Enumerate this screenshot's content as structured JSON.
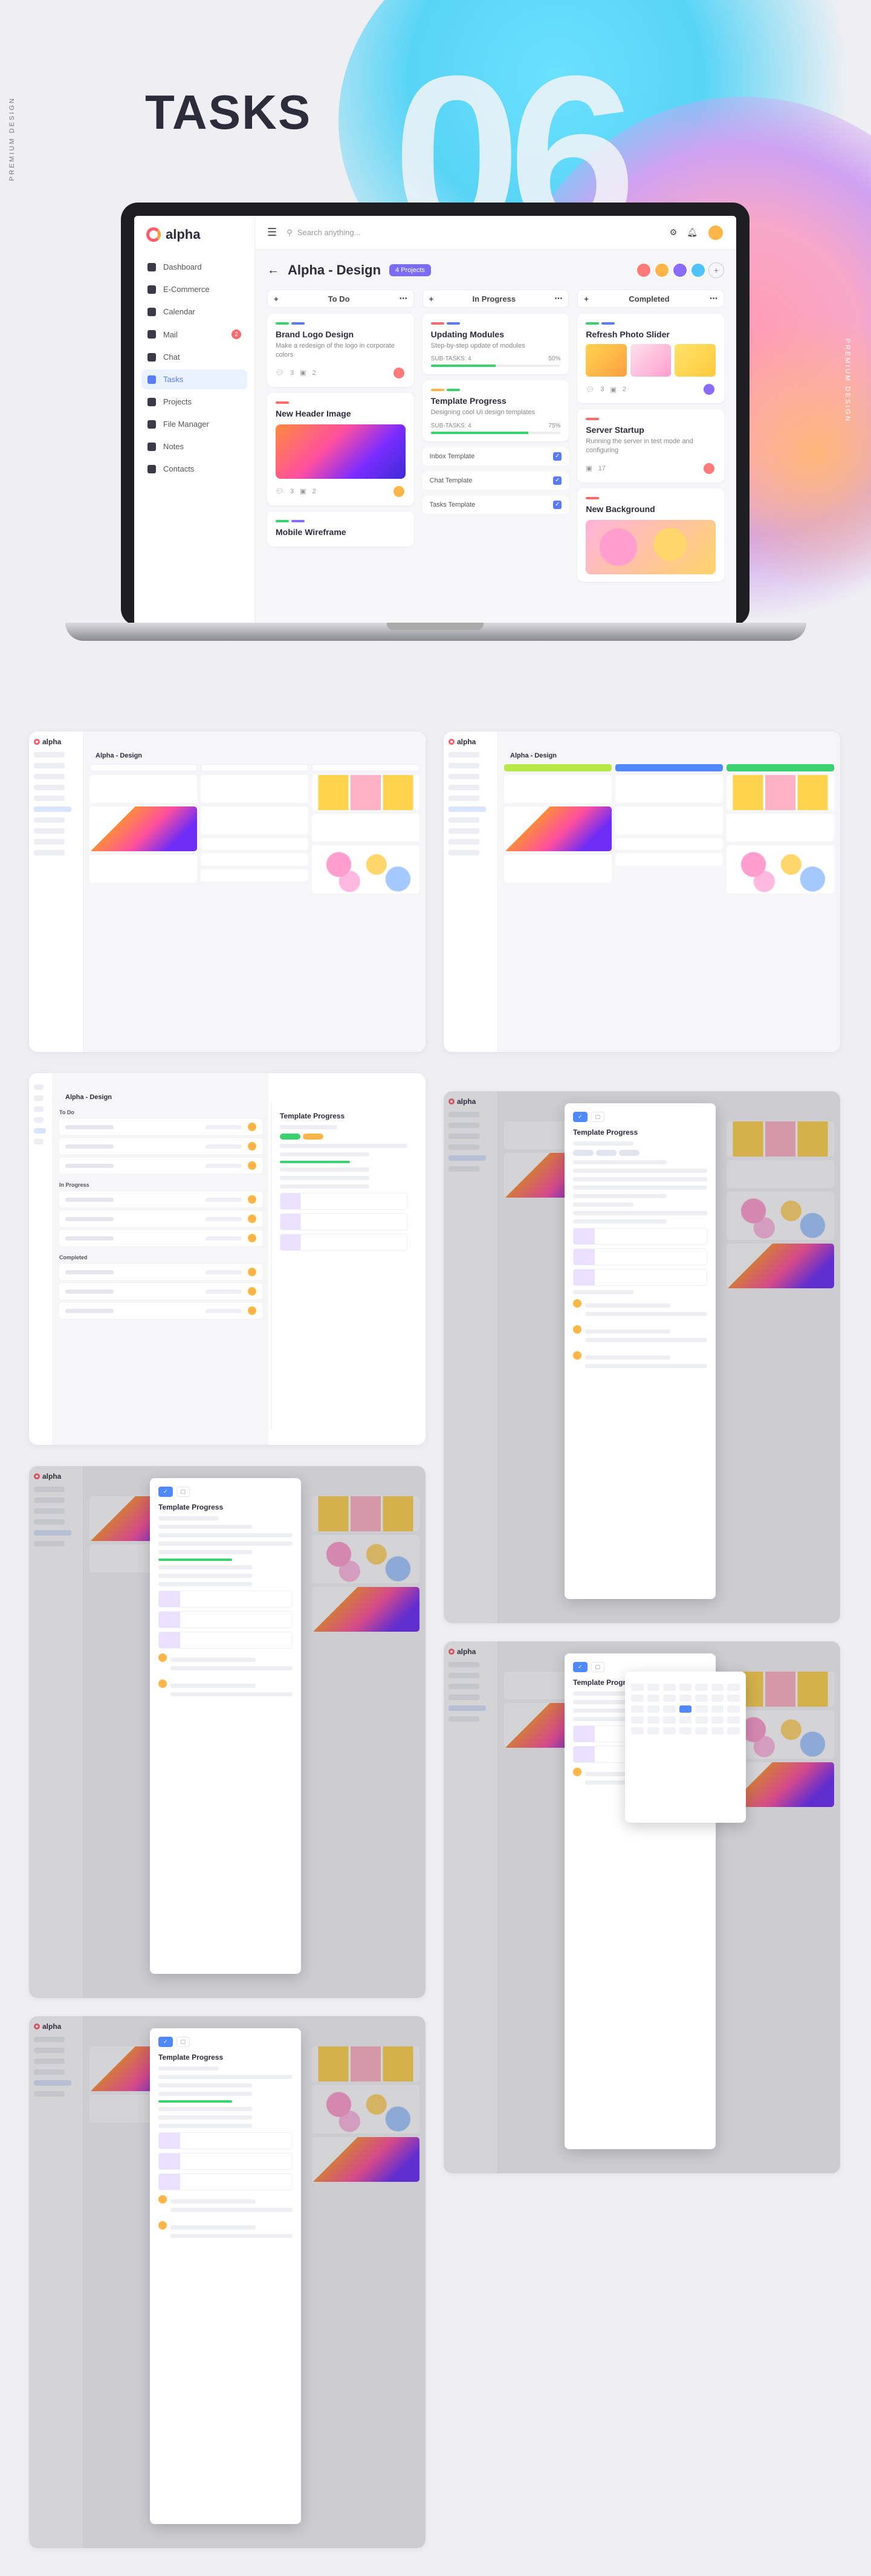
{
  "hero": {
    "title": "TASKS",
    "number": "06",
    "side_label_left": "PREMIUM DESIGN",
    "side_label_right": "PREMIUM DESIGN"
  },
  "app": {
    "logo": "alpha",
    "search_placeholder": "Search anything...",
    "nav": [
      {
        "label": "Dashboard",
        "icon": "grid-icon"
      },
      {
        "label": "E-Commerce",
        "icon": "cart-icon"
      },
      {
        "label": "Calendar",
        "icon": "calendar-icon"
      },
      {
        "label": "Mail",
        "icon": "mail-icon",
        "badge": "2"
      },
      {
        "label": "Chat",
        "icon": "chat-icon"
      },
      {
        "label": "Tasks",
        "icon": "tasks-icon",
        "active": true
      },
      {
        "label": "Projects",
        "icon": "projects-icon"
      },
      {
        "label": "File Manager",
        "icon": "folder-icon"
      },
      {
        "label": "Notes",
        "icon": "notes-icon"
      },
      {
        "label": "Contacts",
        "icon": "contacts-icon"
      }
    ],
    "board": {
      "back": "←",
      "title": "Alpha - Design",
      "tag": "4 Projects"
    },
    "columns": [
      {
        "title": "To Do"
      },
      {
        "title": "In Progress"
      },
      {
        "title": "Completed"
      }
    ],
    "todo": [
      {
        "title": "Brand Logo Design",
        "desc": "Make a redesign of the logo in corporate colors",
        "comments": "3",
        "files": "2"
      },
      {
        "title": "New Header Image",
        "comments": "3",
        "files": "2"
      },
      {
        "title": "Mobile Wireframe"
      }
    ],
    "progress": [
      {
        "title": "Updating Modules",
        "desc": "Step-by-step update of modules",
        "sub": "SUB-TASKS: 4",
        "pct": "50%",
        "value": 50
      },
      {
        "title": "Template Progress",
        "desc": "Designing cool UI design templates",
        "sub": "SUB-TASKS: 4",
        "pct": "75%",
        "value": 75
      }
    ],
    "subtasks": [
      "Inbox Template",
      "Chat Template",
      "Tasks Template"
    ],
    "completed": [
      {
        "title": "Refresh Photo Slider",
        "comments": "3",
        "files": "2"
      },
      {
        "title": "Server Startup",
        "desc": "Running the server in test mode and configuring",
        "files": "17"
      },
      {
        "title": "New Background"
      }
    ]
  },
  "colors": {
    "accent": "#5b7cfa",
    "purple": "#7b6cf6",
    "green": "#3bd16f",
    "red": "#ff6b6b",
    "orange": "#ffb547"
  }
}
